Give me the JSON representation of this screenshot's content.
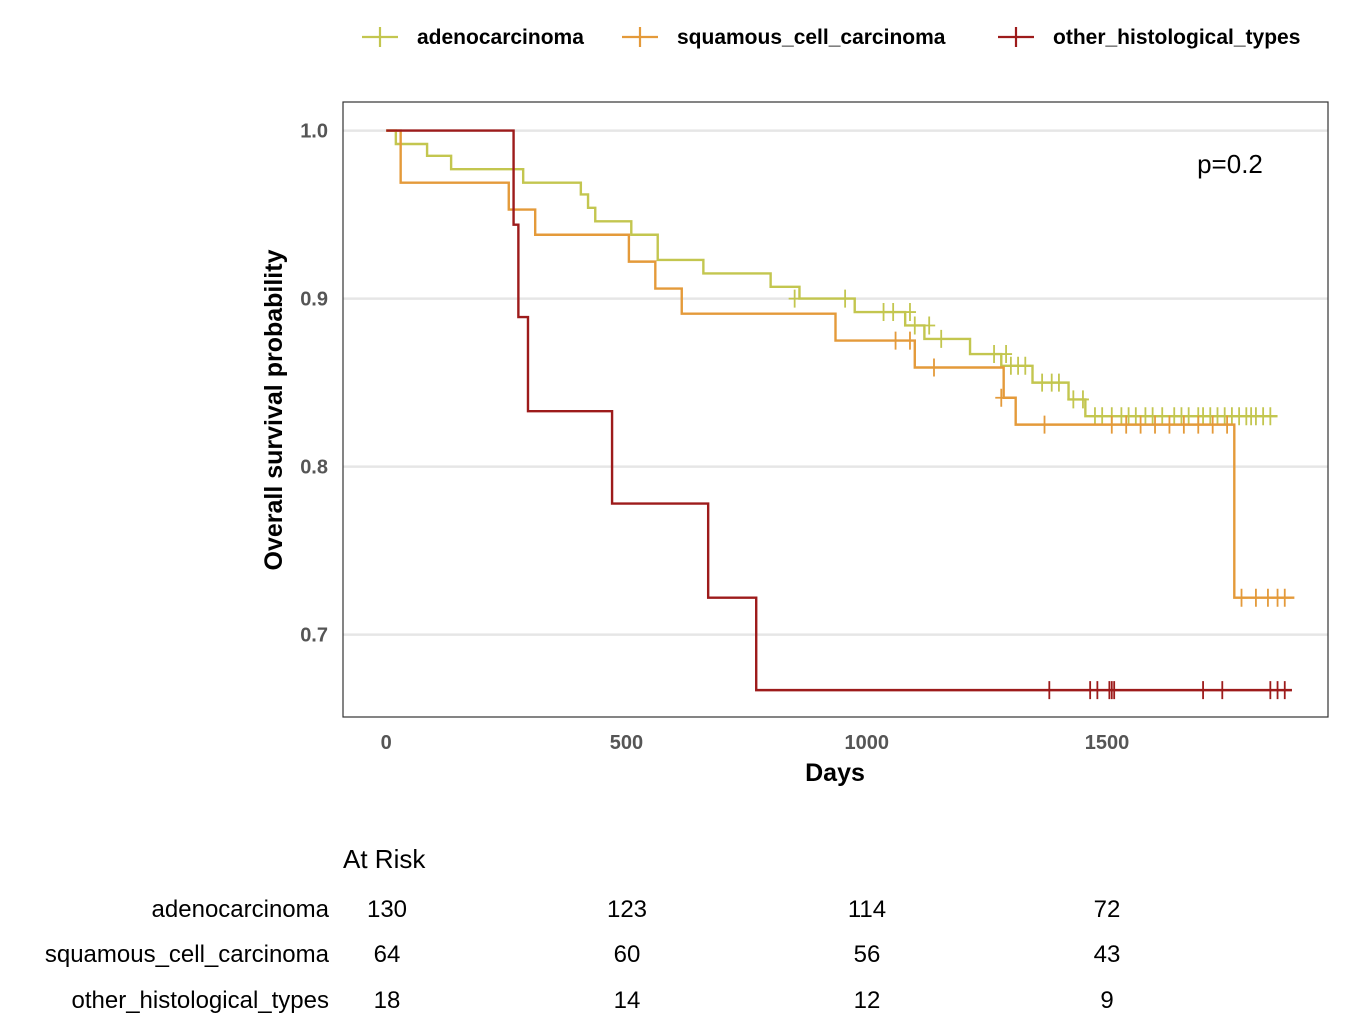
{
  "chart_data": {
    "type": "line",
    "xlabel": "Days",
    "ylabel": "Overall survival probability",
    "x_ticks": [
      "0",
      "500",
      "1000",
      "1500"
    ],
    "y_ticks": [
      "0.7",
      "0.8",
      "0.9",
      "1.0"
    ],
    "xlim": [
      -90,
      1960
    ],
    "ylim": [
      0.651,
      1.017
    ],
    "legend_position": "top",
    "annotation": "p=0.2",
    "series": [
      {
        "name": "adenocarcinoma",
        "color": "#c3c64f",
        "steps": [
          [
            0,
            1.0
          ],
          [
            20,
            0.992
          ],
          [
            85,
            0.985
          ],
          [
            135,
            0.977
          ],
          [
            285,
            0.969
          ],
          [
            405,
            0.962
          ],
          [
            420,
            0.954
          ],
          [
            435,
            0.946
          ],
          [
            510,
            0.938
          ],
          [
            565,
            0.923
          ],
          [
            660,
            0.915
          ],
          [
            800,
            0.907
          ],
          [
            860,
            0.9
          ],
          [
            975,
            0.892
          ],
          [
            1080,
            0.884
          ],
          [
            1120,
            0.876
          ],
          [
            1215,
            0.867
          ],
          [
            1280,
            0.86
          ],
          [
            1345,
            0.85
          ],
          [
            1420,
            0.84
          ],
          [
            1455,
            0.83
          ]
        ],
        "end": 1855,
        "censors": [
          [
            850,
            0.9
          ],
          [
            955,
            0.9
          ],
          [
            1035,
            0.892
          ],
          [
            1055,
            0.892
          ],
          [
            1090,
            0.892
          ],
          [
            1100,
            0.884
          ],
          [
            1130,
            0.884
          ],
          [
            1155,
            0.876
          ],
          [
            1265,
            0.867
          ],
          [
            1290,
            0.867
          ],
          [
            1300,
            0.86
          ],
          [
            1315,
            0.86
          ],
          [
            1330,
            0.86
          ],
          [
            1365,
            0.85
          ],
          [
            1385,
            0.85
          ],
          [
            1400,
            0.85
          ],
          [
            1430,
            0.84
          ],
          [
            1450,
            0.84
          ],
          [
            1475,
            0.83
          ],
          [
            1490,
            0.83
          ],
          [
            1510,
            0.83
          ],
          [
            1530,
            0.83
          ],
          [
            1545,
            0.83
          ],
          [
            1560,
            0.83
          ],
          [
            1580,
            0.83
          ],
          [
            1595,
            0.83
          ],
          [
            1615,
            0.83
          ],
          [
            1640,
            0.83
          ],
          [
            1655,
            0.83
          ],
          [
            1670,
            0.83
          ],
          [
            1690,
            0.83
          ],
          [
            1700,
            0.83
          ],
          [
            1715,
            0.83
          ],
          [
            1730,
            0.83
          ],
          [
            1745,
            0.83
          ],
          [
            1760,
            0.83
          ],
          [
            1775,
            0.83
          ],
          [
            1790,
            0.83
          ],
          [
            1800,
            0.83
          ],
          [
            1810,
            0.83
          ],
          [
            1825,
            0.83
          ],
          [
            1840,
            0.83
          ]
        ]
      },
      {
        "name": "squamous_cell_carcinoma",
        "color": "#e49a3a",
        "steps": [
          [
            0,
            1.0
          ],
          [
            30,
            0.969
          ],
          [
            255,
            0.953
          ],
          [
            310,
            0.938
          ],
          [
            505,
            0.922
          ],
          [
            560,
            0.906
          ],
          [
            615,
            0.891
          ],
          [
            935,
            0.875
          ],
          [
            1100,
            0.859
          ],
          [
            1285,
            0.841
          ],
          [
            1310,
            0.825
          ],
          [
            1765,
            0.722
          ]
        ],
        "end": 1890,
        "censors": [
          [
            1060,
            0.875
          ],
          [
            1090,
            0.875
          ],
          [
            1140,
            0.859
          ],
          [
            1280,
            0.841
          ],
          [
            1370,
            0.825
          ],
          [
            1510,
            0.825
          ],
          [
            1540,
            0.825
          ],
          [
            1570,
            0.825
          ],
          [
            1600,
            0.825
          ],
          [
            1630,
            0.825
          ],
          [
            1660,
            0.825
          ],
          [
            1690,
            0.825
          ],
          [
            1720,
            0.825
          ],
          [
            1750,
            0.825
          ],
          [
            1780,
            0.722
          ],
          [
            1810,
            0.722
          ],
          [
            1835,
            0.722
          ],
          [
            1855,
            0.722
          ],
          [
            1870,
            0.722
          ]
        ]
      },
      {
        "name": "other_histological_types",
        "color": "#9d1b1b",
        "steps": [
          [
            0,
            1.0
          ],
          [
            265,
            0.944
          ],
          [
            275,
            0.889
          ],
          [
            295,
            0.833
          ],
          [
            470,
            0.778
          ],
          [
            670,
            0.722
          ],
          [
            770,
            0.667
          ]
        ],
        "end": 1885,
        "censors": [
          [
            1380,
            0.667
          ],
          [
            1465,
            0.667
          ],
          [
            1480,
            0.667
          ],
          [
            1505,
            0.667
          ],
          [
            1510,
            0.667
          ],
          [
            1515,
            0.667
          ],
          [
            1700,
            0.667
          ],
          [
            1740,
            0.667
          ],
          [
            1840,
            0.667
          ],
          [
            1855,
            0.667
          ],
          [
            1870,
            0.667
          ]
        ]
      }
    ]
  },
  "risk_table": {
    "title": "At Risk",
    "time_points": [
      0,
      500,
      1000,
      1500
    ],
    "rows": [
      {
        "name": "adenocarcinoma",
        "values": [
          "130",
          "123",
          "114",
          "72"
        ]
      },
      {
        "name": "squamous_cell_carcinoma",
        "values": [
          "64",
          "60",
          "56",
          "43"
        ]
      },
      {
        "name": "other_histological_types",
        "values": [
          "18",
          "14",
          "12",
          "9"
        ]
      }
    ]
  }
}
